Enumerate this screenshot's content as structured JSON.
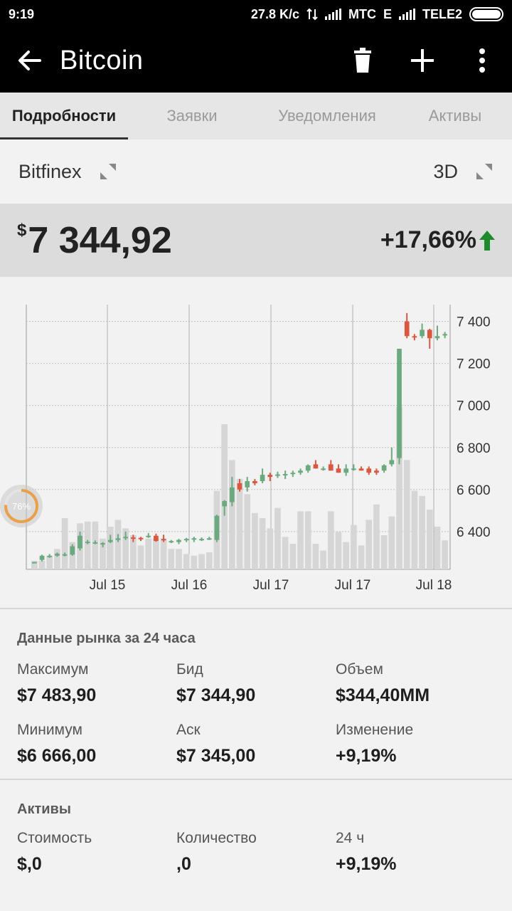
{
  "status_bar": {
    "time": "9:19",
    "speed": "27.8 K/c",
    "carrier1": "MTC",
    "carrier1_net": "E",
    "carrier2": "TELE2"
  },
  "app_bar": {
    "title": "Bitcoin",
    "icons": [
      "back-arrow-icon",
      "trash-icon",
      "plus-icon",
      "more-vert-icon"
    ]
  },
  "tabs": [
    {
      "label": "Подробности",
      "active": true
    },
    {
      "label": "Заявки",
      "active": false
    },
    {
      "label": "Уведомления",
      "active": false
    },
    {
      "label": "Активы",
      "active": false
    }
  ],
  "exchange": {
    "name": "Bitfinex",
    "period": "3D"
  },
  "price": {
    "currency": "$",
    "value": "7 344,92",
    "change": "+17,66%",
    "change_color": "#1e8a2e"
  },
  "overlay": {
    "percent": "76%"
  },
  "chart_data": {
    "type": "candlestick",
    "x_tick_labels": [
      "Jul 15",
      "Jul 16",
      "Jul 17",
      "Jul 17",
      "Jul 18"
    ],
    "y_tick_labels": [
      "7 400",
      "7 200",
      "7 000",
      "6 800",
      "6 600",
      "6 400"
    ],
    "y_ticks": [
      7400,
      7200,
      7000,
      6800,
      6600,
      6400
    ],
    "ylim": [
      6220,
      7480
    ],
    "grid": true,
    "up_color": "#6aaa7e",
    "down_color": "#d9583f",
    "volume_color": "#d6d6d6",
    "candles": [
      {
        "o": 6255,
        "h": 6255,
        "l": 6250,
        "c": 6255,
        "v": 0.05
      },
      {
        "o": 6265,
        "h": 6290,
        "l": 6258,
        "c": 6285,
        "v": 0.05
      },
      {
        "o": 6280,
        "h": 6293,
        "l": 6275,
        "c": 6285,
        "v": 0.08
      },
      {
        "o": 6285,
        "h": 6300,
        "l": 6280,
        "c": 6295,
        "v": 0.12
      },
      {
        "o": 6290,
        "h": 6300,
        "l": 6282,
        "c": 6292,
        "v": 0.3
      },
      {
        "o": 6290,
        "h": 6340,
        "l": 6285,
        "c": 6330,
        "v": 0.16
      },
      {
        "o": 6320,
        "h": 6400,
        "l": 6310,
        "c": 6380,
        "v": 0.27
      },
      {
        "o": 6345,
        "h": 6360,
        "l": 6340,
        "c": 6352,
        "v": 0.28
      },
      {
        "o": 6348,
        "h": 6358,
        "l": 6340,
        "c": 6349,
        "v": 0.28
      },
      {
        "o": 6340,
        "h": 6350,
        "l": 6325,
        "c": 6345,
        "v": 0.18
      },
      {
        "o": 6350,
        "h": 6385,
        "l": 6345,
        "c": 6360,
        "v": 0.25
      },
      {
        "o": 6360,
        "h": 6388,
        "l": 6350,
        "c": 6368,
        "v": 0.29
      },
      {
        "o": 6368,
        "h": 6400,
        "l": 6360,
        "c": 6375,
        "v": 0.24
      },
      {
        "o": 6372,
        "h": 6385,
        "l": 6350,
        "c": 6368,
        "v": 0.2
      },
      {
        "o": 6370,
        "h": 6375,
        "l": 6355,
        "c": 6365,
        "v": 0.14
      },
      {
        "o": 6375,
        "h": 6393,
        "l": 6370,
        "c": 6380,
        "v": 0.18
      },
      {
        "o": 6380,
        "h": 6390,
        "l": 6352,
        "c": 6355,
        "v": 0.18
      },
      {
        "o": 6365,
        "h": 6385,
        "l": 6350,
        "c": 6360,
        "v": 0.18
      },
      {
        "o": 6350,
        "h": 6360,
        "l": 6345,
        "c": 6355,
        "v": 0.12
      },
      {
        "o": 6350,
        "h": 6365,
        "l": 6340,
        "c": 6360,
        "v": 0.12
      },
      {
        "o": 6360,
        "h": 6370,
        "l": 6350,
        "c": 6365,
        "v": 0.09
      },
      {
        "o": 6363,
        "h": 6375,
        "l": 6350,
        "c": 6368,
        "v": 0.08
      },
      {
        "o": 6365,
        "h": 6372,
        "l": 6355,
        "c": 6365,
        "v": 0.09
      },
      {
        "o": 6368,
        "h": 6375,
        "l": 6360,
        "c": 6368,
        "v": 0.1
      },
      {
        "o": 6360,
        "h": 6480,
        "l": 6350,
        "c": 6475,
        "v": 0.46
      },
      {
        "o": 6520,
        "h": 6550,
        "l": 6475,
        "c": 6545,
        "v": 0.85
      },
      {
        "o": 6540,
        "h": 6660,
        "l": 6520,
        "c": 6610,
        "v": 0.64
      },
      {
        "o": 6630,
        "h": 6650,
        "l": 6590,
        "c": 6600,
        "v": 0.53
      },
      {
        "o": 6610,
        "h": 6660,
        "l": 6590,
        "c": 6640,
        "v": 0.44
      },
      {
        "o": 6640,
        "h": 6650,
        "l": 6620,
        "c": 6630,
        "v": 0.33
      },
      {
        "o": 6640,
        "h": 6700,
        "l": 6630,
        "c": 6670,
        "v": 0.3
      },
      {
        "o": 6670,
        "h": 6680,
        "l": 6640,
        "c": 6660,
        "v": 0.24
      },
      {
        "o": 6665,
        "h": 6685,
        "l": 6655,
        "c": 6672,
        "v": 0.36
      },
      {
        "o": 6670,
        "h": 6690,
        "l": 6650,
        "c": 6674,
        "v": 0.19
      },
      {
        "o": 6674,
        "h": 6690,
        "l": 6660,
        "c": 6680,
        "v": 0.15
      },
      {
        "o": 6680,
        "h": 6700,
        "l": 6670,
        "c": 6690,
        "v": 0.34
      },
      {
        "o": 6690,
        "h": 6720,
        "l": 6680,
        "c": 6715,
        "v": 0.34
      },
      {
        "o": 6720,
        "h": 6740,
        "l": 6700,
        "c": 6700,
        "v": 0.15
      },
      {
        "o": 6700,
        "h": 6710,
        "l": 6690,
        "c": 6700,
        "v": 0.11
      },
      {
        "o": 6720,
        "h": 6740,
        "l": 6690,
        "c": 6690,
        "v": 0.34
      },
      {
        "o": 6700,
        "h": 6720,
        "l": 6680,
        "c": 6680,
        "v": 0.22
      },
      {
        "o": 6680,
        "h": 6720,
        "l": 6665,
        "c": 6700,
        "v": 0.16
      },
      {
        "o": 6700,
        "h": 6720,
        "l": 6690,
        "c": 6700,
        "v": 0.26
      },
      {
        "o": 6700,
        "h": 6710,
        "l": 6690,
        "c": 6690,
        "v": 0.14
      },
      {
        "o": 6700,
        "h": 6710,
        "l": 6670,
        "c": 6680,
        "v": 0.29
      },
      {
        "o": 6690,
        "h": 6700,
        "l": 6670,
        "c": 6680,
        "v": 0.38
      },
      {
        "o": 6690,
        "h": 6720,
        "l": 6680,
        "c": 6715,
        "v": 0.2
      },
      {
        "o": 6720,
        "h": 6800,
        "l": 6710,
        "c": 6740,
        "v": 0.31
      },
      {
        "o": 6750,
        "h": 7270,
        "l": 6720,
        "c": 7270,
        "v": 0.95
      },
      {
        "o": 7400,
        "h": 7440,
        "l": 7320,
        "c": 7330,
        "v": 0.64
      },
      {
        "o": 7330,
        "h": 7340,
        "l": 7310,
        "c": 7325,
        "v": 0.46
      },
      {
        "o": 7330,
        "h": 7390,
        "l": 7320,
        "c": 7360,
        "v": 0.43
      },
      {
        "o": 7360,
        "h": 7365,
        "l": 7270,
        "c": 7320,
        "v": 0.35
      },
      {
        "o": 7320,
        "h": 7380,
        "l": 7310,
        "c": 7330,
        "v": 0.25
      },
      {
        "o": 7335,
        "h": 7350,
        "l": 7320,
        "c": 7340,
        "v": 0.17
      }
    ]
  },
  "market": {
    "title": "Данные рынка за 24 часа",
    "items": [
      {
        "label": "Максимум",
        "value": "$7 483,90"
      },
      {
        "label": "Бид",
        "value": "$7 344,90"
      },
      {
        "label": "Объем",
        "value": "$344,40MM"
      },
      {
        "label": "Минимум",
        "value": "$6 666,00"
      },
      {
        "label": "Аск",
        "value": "$7 345,00"
      },
      {
        "label": "Изменение",
        "value": "+9,19%"
      }
    ]
  },
  "assets": {
    "title": "Активы",
    "items": [
      {
        "label": "Стоимость",
        "value": "$,0"
      },
      {
        "label": "Количество",
        "value": ",0"
      },
      {
        "label": "24 ч",
        "value": "+9,19%"
      }
    ]
  }
}
